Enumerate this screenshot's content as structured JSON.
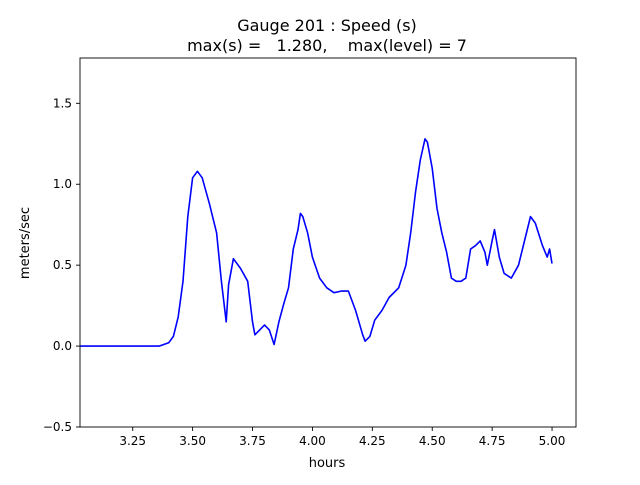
{
  "chart_data": {
    "type": "line",
    "title_line1": "Gauge 201 : Speed (s)",
    "title_line2": "max(s) =   1.280,    max(level) = 7",
    "xlabel": "hours",
    "ylabel": "meters/sec",
    "xlim": [
      3.03,
      5.1
    ],
    "ylim": [
      -0.5,
      1.78
    ],
    "grid": false,
    "line_color": "#0000ff",
    "x_ticks": [
      {
        "value": 3.25,
        "label": "3.25"
      },
      {
        "value": 3.5,
        "label": "3.50"
      },
      {
        "value": 3.75,
        "label": "3.75"
      },
      {
        "value": 4.0,
        "label": "4.00"
      },
      {
        "value": 4.25,
        "label": "4.25"
      },
      {
        "value": 4.5,
        "label": "4.50"
      },
      {
        "value": 4.75,
        "label": "4.75"
      },
      {
        "value": 5.0,
        "label": "5.00"
      }
    ],
    "y_ticks": [
      {
        "value": -0.5,
        "label": "−0.5"
      },
      {
        "value": 0.0,
        "label": "0.0"
      },
      {
        "value": 0.5,
        "label": "0.5"
      },
      {
        "value": 1.0,
        "label": "1.0"
      },
      {
        "value": 1.5,
        "label": "1.5"
      }
    ],
    "series": [
      {
        "points": [
          [
            3.03,
            0.0
          ],
          [
            3.1,
            0.0
          ],
          [
            3.2,
            0.0
          ],
          [
            3.3,
            0.0
          ],
          [
            3.36,
            0.0
          ],
          [
            3.4,
            0.02
          ],
          [
            3.42,
            0.06
          ],
          [
            3.44,
            0.18
          ],
          [
            3.46,
            0.4
          ],
          [
            3.48,
            0.8
          ],
          [
            3.5,
            1.04
          ],
          [
            3.52,
            1.08
          ],
          [
            3.54,
            1.04
          ],
          [
            3.57,
            0.88
          ],
          [
            3.6,
            0.7
          ],
          [
            3.62,
            0.4
          ],
          [
            3.64,
            0.15
          ],
          [
            3.65,
            0.38
          ],
          [
            3.67,
            0.54
          ],
          [
            3.7,
            0.48
          ],
          [
            3.73,
            0.4
          ],
          [
            3.75,
            0.15
          ],
          [
            3.76,
            0.07
          ],
          [
            3.78,
            0.1
          ],
          [
            3.8,
            0.13
          ],
          [
            3.82,
            0.1
          ],
          [
            3.84,
            0.01
          ],
          [
            3.86,
            0.15
          ],
          [
            3.88,
            0.26
          ],
          [
            3.9,
            0.36
          ],
          [
            3.92,
            0.6
          ],
          [
            3.94,
            0.72
          ],
          [
            3.95,
            0.82
          ],
          [
            3.96,
            0.8
          ],
          [
            3.98,
            0.7
          ],
          [
            4.0,
            0.55
          ],
          [
            4.03,
            0.42
          ],
          [
            4.06,
            0.36
          ],
          [
            4.09,
            0.33
          ],
          [
            4.12,
            0.34
          ],
          [
            4.15,
            0.34
          ],
          [
            4.18,
            0.22
          ],
          [
            4.21,
            0.07
          ],
          [
            4.22,
            0.03
          ],
          [
            4.24,
            0.06
          ],
          [
            4.26,
            0.16
          ],
          [
            4.29,
            0.22
          ],
          [
            4.32,
            0.3
          ],
          [
            4.36,
            0.36
          ],
          [
            4.39,
            0.5
          ],
          [
            4.41,
            0.7
          ],
          [
            4.43,
            0.95
          ],
          [
            4.45,
            1.15
          ],
          [
            4.47,
            1.28
          ],
          [
            4.48,
            1.26
          ],
          [
            4.5,
            1.1
          ],
          [
            4.52,
            0.85
          ],
          [
            4.54,
            0.7
          ],
          [
            4.56,
            0.58
          ],
          [
            4.58,
            0.42
          ],
          [
            4.6,
            0.4
          ],
          [
            4.62,
            0.4
          ],
          [
            4.64,
            0.42
          ],
          [
            4.66,
            0.6
          ],
          [
            4.68,
            0.62
          ],
          [
            4.7,
            0.65
          ],
          [
            4.72,
            0.58
          ],
          [
            4.73,
            0.5
          ],
          [
            4.75,
            0.65
          ],
          [
            4.76,
            0.72
          ],
          [
            4.78,
            0.55
          ],
          [
            4.8,
            0.45
          ],
          [
            4.83,
            0.42
          ],
          [
            4.86,
            0.5
          ],
          [
            4.89,
            0.68
          ],
          [
            4.91,
            0.8
          ],
          [
            4.93,
            0.76
          ],
          [
            4.96,
            0.62
          ],
          [
            4.98,
            0.55
          ],
          [
            4.99,
            0.6
          ],
          [
            5.0,
            0.51
          ]
        ]
      }
    ]
  }
}
